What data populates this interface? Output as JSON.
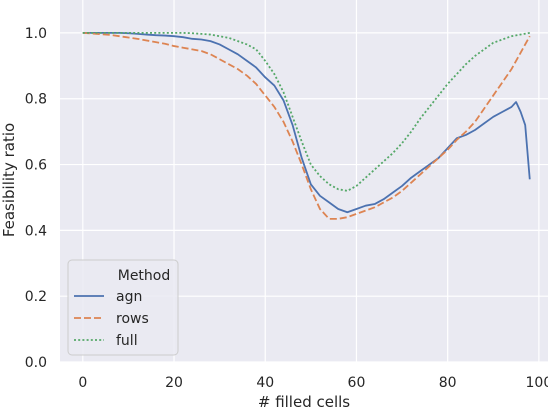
{
  "chart_data": {
    "type": "line",
    "xlabel": "# filled cells",
    "ylabel": "Feasibility ratio",
    "xlim": [
      -5,
      102
    ],
    "ylim": [
      0,
      1.1
    ],
    "x_ticks": [
      0,
      20,
      40,
      60,
      80,
      100
    ],
    "y_ticks": [
      0.0,
      0.2,
      0.4,
      0.6,
      0.8,
      1.0
    ],
    "x_tick_labels": [
      "0",
      "20",
      "40",
      "60",
      "80",
      "100"
    ],
    "y_tick_labels": [
      "0.0",
      "0.2",
      "0.4",
      "0.6",
      "0.8",
      "1.0"
    ],
    "grid": true,
    "background": "#eaeaf2",
    "legend": {
      "title": "Method",
      "placement": "lower-left"
    },
    "series": [
      {
        "name": "agn",
        "color": "#4c72b0",
        "dash": "solid",
        "x": [
          0,
          2,
          4,
          6,
          8,
          10,
          12,
          14,
          16,
          18,
          20,
          22,
          24,
          26,
          28,
          30,
          32,
          34,
          36,
          38,
          40,
          42,
          44,
          46,
          48,
          50,
          52,
          54,
          56,
          58,
          60,
          62,
          64,
          66,
          68,
          70,
          72,
          74,
          76,
          78,
          80,
          82,
          84,
          86,
          88,
          90,
          92,
          94,
          95,
          96,
          97,
          98
        ],
        "y": [
          1.0,
          1.0,
          1.0,
          1.0,
          1.0,
          0.999,
          0.997,
          0.995,
          0.993,
          0.992,
          0.99,
          0.987,
          0.982,
          0.98,
          0.975,
          0.965,
          0.95,
          0.935,
          0.915,
          0.895,
          0.865,
          0.84,
          0.795,
          0.72,
          0.62,
          0.54,
          0.505,
          0.485,
          0.465,
          0.455,
          0.465,
          0.475,
          0.48,
          0.495,
          0.515,
          0.535,
          0.56,
          0.58,
          0.6,
          0.62,
          0.65,
          0.68,
          0.69,
          0.705,
          0.725,
          0.745,
          0.76,
          0.775,
          0.79,
          0.76,
          0.72,
          0.555
        ]
      },
      {
        "name": "rows",
        "color": "#dd8452",
        "dash": "dashed",
        "x": [
          0,
          2,
          4,
          6,
          8,
          10,
          12,
          14,
          16,
          18,
          20,
          22,
          24,
          26,
          28,
          30,
          32,
          34,
          36,
          38,
          40,
          42,
          44,
          46,
          48,
          50,
          52,
          54,
          56,
          58,
          60,
          62,
          64,
          66,
          68,
          70,
          72,
          74,
          76,
          78,
          80,
          82,
          84,
          86,
          88,
          90,
          92,
          94,
          96,
          98
        ],
        "y": [
          1.0,
          0.998,
          0.996,
          0.994,
          0.99,
          0.986,
          0.982,
          0.977,
          0.972,
          0.967,
          0.96,
          0.955,
          0.95,
          0.945,
          0.935,
          0.92,
          0.905,
          0.89,
          0.87,
          0.845,
          0.81,
          0.775,
          0.73,
          0.67,
          0.6,
          0.525,
          0.465,
          0.435,
          0.435,
          0.44,
          0.45,
          0.46,
          0.47,
          0.485,
          0.5,
          0.52,
          0.545,
          0.57,
          0.595,
          0.62,
          0.645,
          0.675,
          0.7,
          0.73,
          0.77,
          0.81,
          0.85,
          0.89,
          0.94,
          0.99
        ]
      },
      {
        "name": "full",
        "color": "#55a868",
        "dash": "dotted",
        "x": [
          0,
          2,
          4,
          6,
          8,
          10,
          12,
          14,
          16,
          18,
          20,
          22,
          24,
          26,
          28,
          30,
          32,
          34,
          36,
          38,
          40,
          42,
          44,
          46,
          48,
          50,
          52,
          54,
          56,
          58,
          60,
          62,
          64,
          66,
          68,
          70,
          72,
          74,
          76,
          78,
          80,
          82,
          84,
          86,
          88,
          90,
          92,
          94,
          96,
          98
        ],
        "y": [
          1.0,
          1.0,
          1.0,
          1.0,
          1.0,
          1.0,
          1.0,
          1.0,
          1.0,
          1.0,
          1.0,
          1.0,
          0.999,
          0.997,
          0.995,
          0.99,
          0.985,
          0.975,
          0.965,
          0.95,
          0.915,
          0.875,
          0.82,
          0.745,
          0.67,
          0.6,
          0.565,
          0.54,
          0.525,
          0.52,
          0.535,
          0.56,
          0.585,
          0.61,
          0.635,
          0.665,
          0.7,
          0.74,
          0.775,
          0.81,
          0.845,
          0.875,
          0.905,
          0.93,
          0.95,
          0.97,
          0.98,
          0.99,
          0.995,
          1.0
        ]
      }
    ]
  }
}
